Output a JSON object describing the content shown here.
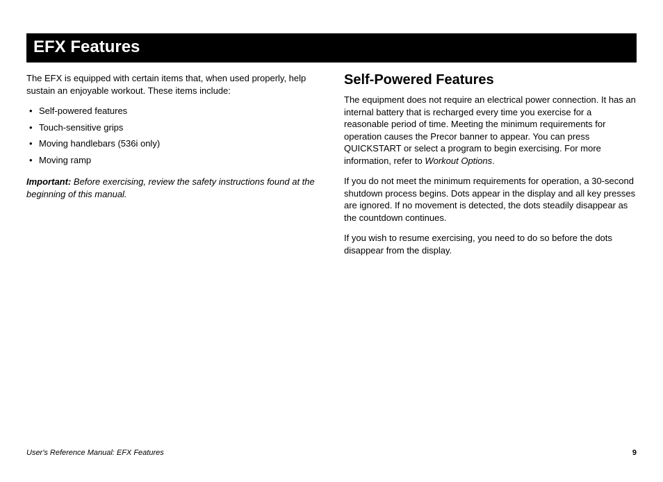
{
  "title": "EFX Features",
  "left": {
    "intro": "The EFX is equipped with certain items that, when used properly, help sustain an enjoyable workout. These items include:",
    "bullets": [
      "Self-powered features",
      "Touch-sensitive grips",
      "Moving handlebars (536i only)",
      "Moving ramp"
    ],
    "important_label": "Important:",
    "important_text": " Before exercising, review the safety instructions found at the beginning of this manual."
  },
  "right": {
    "heading": "Self-Powered Features",
    "p1a": "The equipment does not require an electrical power connection. It has an internal battery that is recharged every time you exercise for a reasonable period of time. Meeting the minimum requirements for operation causes the Precor banner to appear. You can press QUICKSTART or select a program to begin exercising. For more information, refer to ",
    "p1b_italic": "Workout Options",
    "p1c": ".",
    "p2": "If you do not meet the minimum requirements for operation, a 30-second shutdown process begins. Dots appear in the display and all key presses are ignored. If no movement is detected, the dots steadily disappear as the countdown continues.",
    "p3": "If you wish to resume exercising, you need to do so before the dots disappear from the display."
  },
  "footer": {
    "left": "User's Reference Manual: EFX Features",
    "page": "9"
  }
}
